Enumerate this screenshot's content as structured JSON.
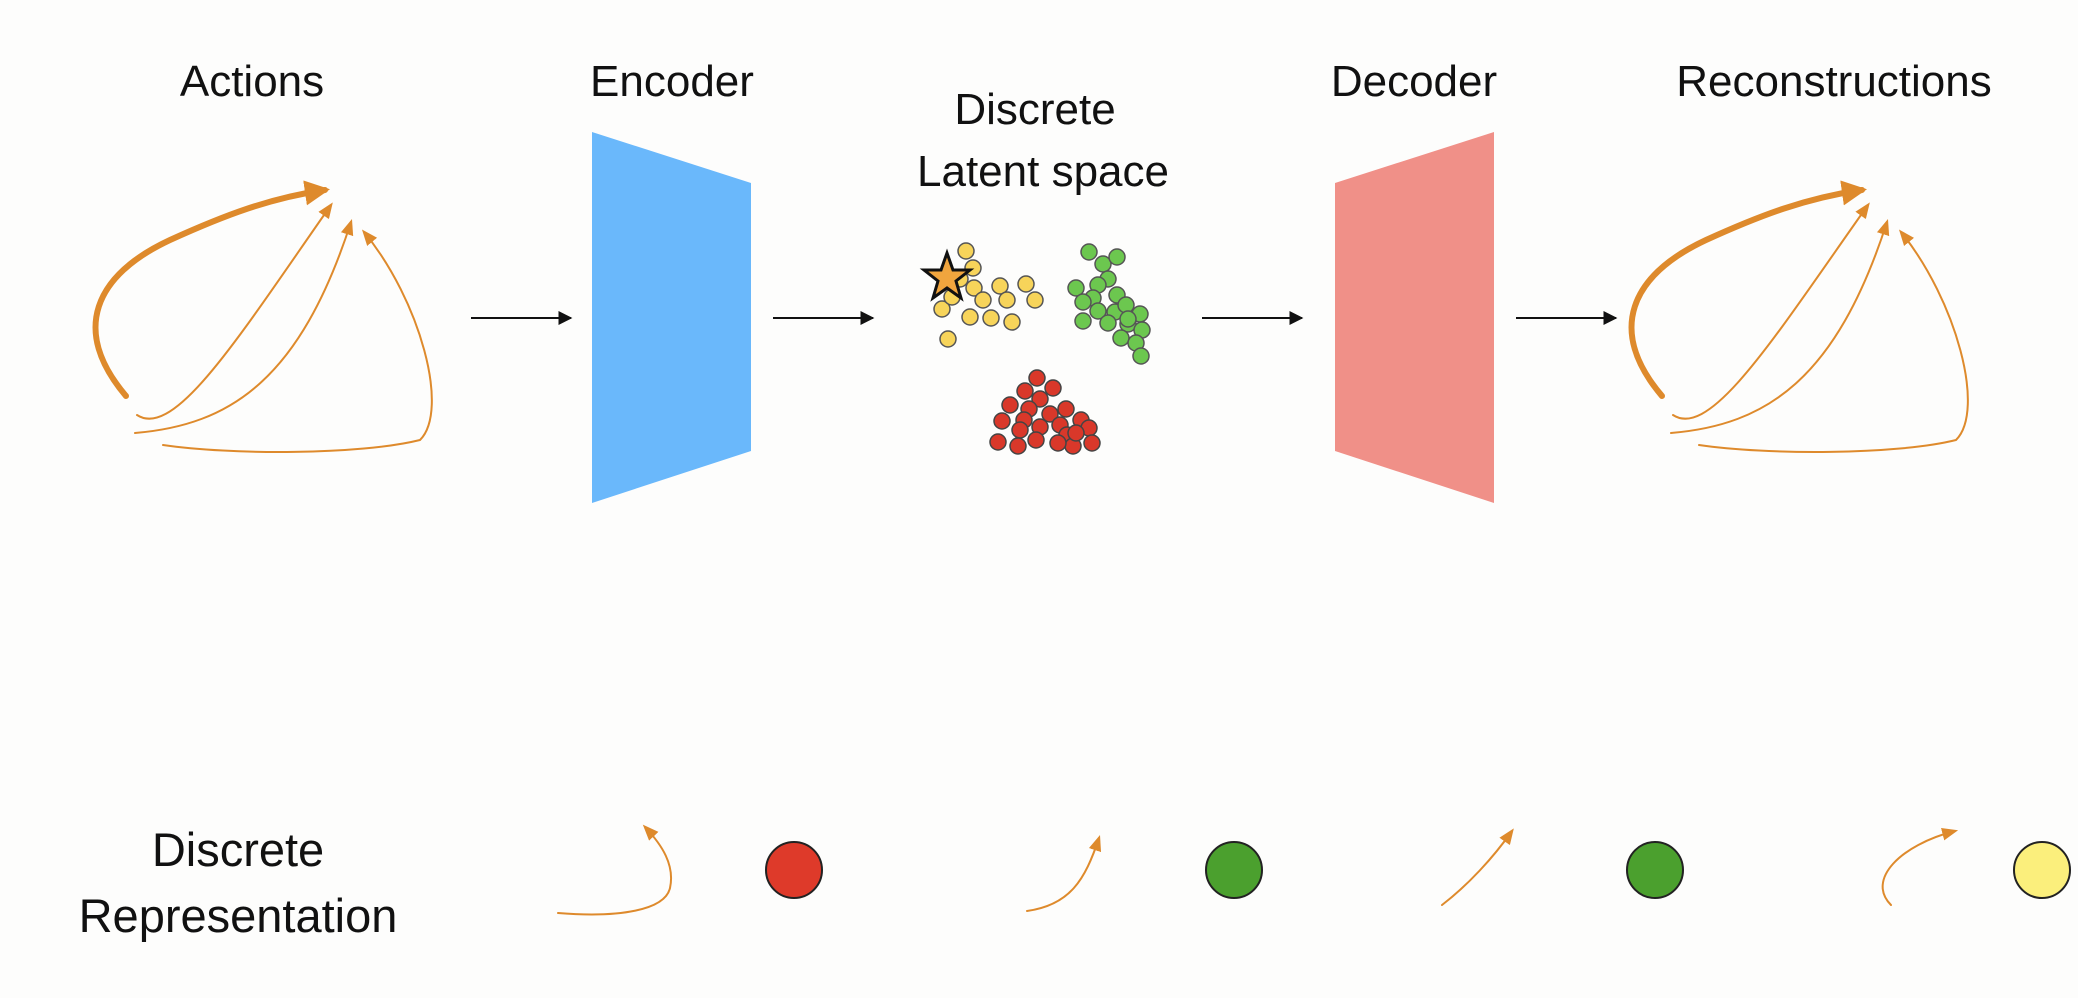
{
  "headings": {
    "actions": "Actions",
    "encoder": "Encoder",
    "latent_line1": "Discrete",
    "latent_line2": "Latent space",
    "decoder": "Decoder",
    "reconstructions": "Reconstructions"
  },
  "bottom_label": {
    "line1": "Discrete",
    "line2": "Representation"
  },
  "colors": {
    "encoder": "#6ab8fb",
    "decoder": "#f09088",
    "trajectory": "#de8a2c",
    "cluster_yellow": "#f7d45a",
    "cluster_green": "#6cc74f",
    "cluster_red": "#d9382a",
    "token_red": "#de3a2a",
    "token_green": "#4ba02e",
    "token_yellow": "#fbef7c",
    "star": "#f0a53e"
  },
  "representation_tokens": [
    {
      "motion": "hook",
      "token": "red"
    },
    {
      "motion": "short-curve",
      "token": "green"
    },
    {
      "motion": "straight",
      "token": "green"
    },
    {
      "motion": "arc",
      "token": "yellow"
    }
  ]
}
